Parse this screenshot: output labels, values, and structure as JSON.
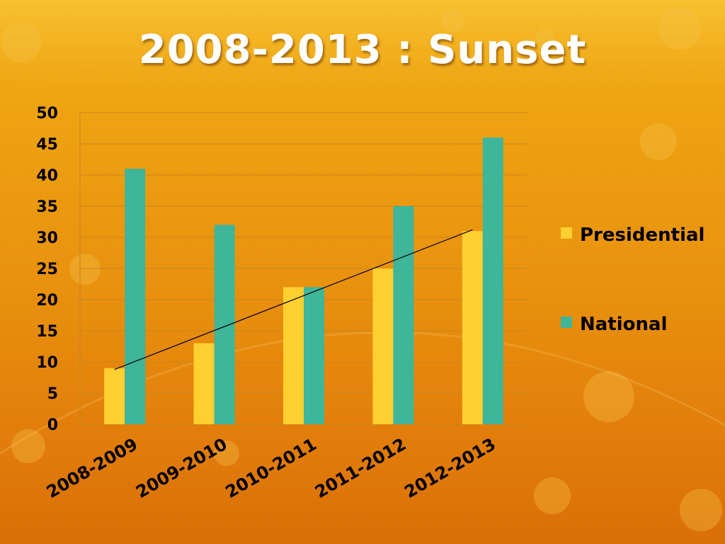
{
  "slide": {
    "title": "2008-2013 : Sunset"
  },
  "chart_data": {
    "type": "bar",
    "title": "",
    "xlabel": "",
    "ylabel": "",
    "categories": [
      "2008-2009",
      "2009-2010",
      "2010-2011",
      "2011-2012",
      "2012-2013"
    ],
    "series": [
      {
        "name": "Presidential",
        "values": [
          9,
          13,
          22,
          25,
          31
        ],
        "color": "#ffd030"
      },
      {
        "name": "National",
        "values": [
          41,
          32,
          22,
          35,
          46
        ],
        "color": "#3fb59a"
      }
    ],
    "trendline": {
      "series": "Presidential",
      "type": "linear",
      "color": "#000000"
    },
    "ylim": [
      0,
      50
    ],
    "yticks": [
      0,
      5,
      10,
      15,
      20,
      25,
      30,
      35,
      40,
      45,
      50
    ],
    "grid": true,
    "legend": "right"
  }
}
